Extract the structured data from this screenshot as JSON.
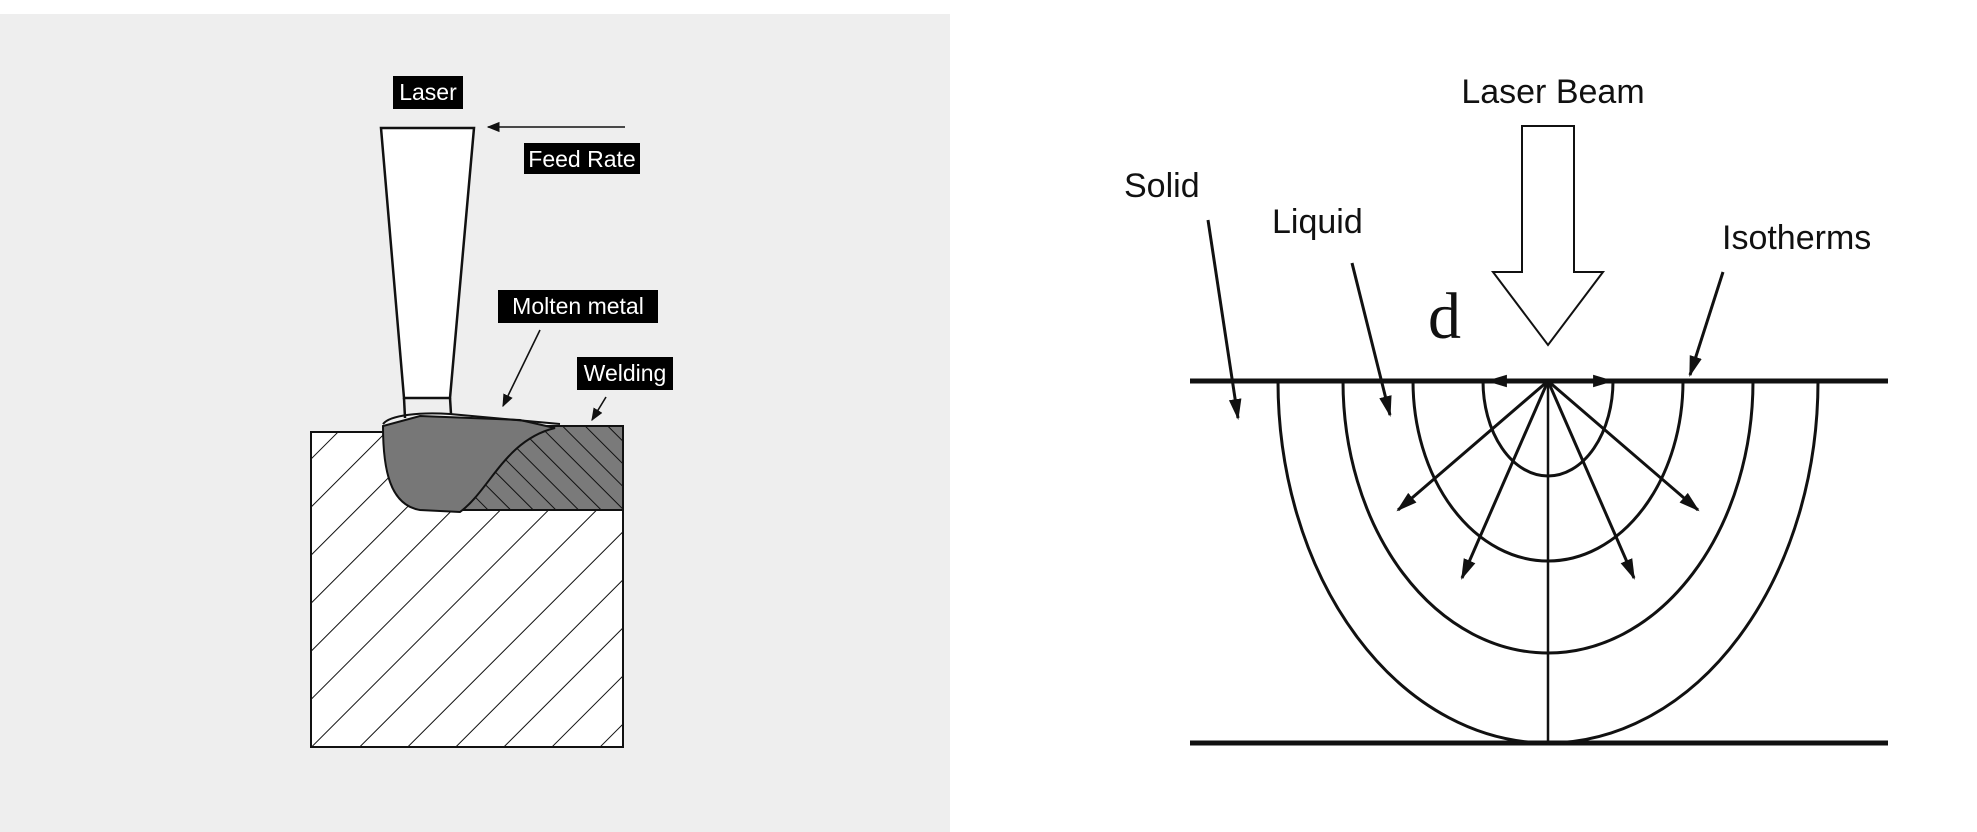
{
  "left_panel": {
    "background": "#eeeeee",
    "labels": {
      "laser": "Laser",
      "feed_rate": "Feed Rate",
      "molten_metal": "Molten metal",
      "welding": "Welding"
    },
    "colors": {
      "label_bg": "#000000",
      "molten": "#777777",
      "weld": "#7a7a7a"
    }
  },
  "right_panel": {
    "labels": {
      "laser_beam": "Laser Beam",
      "solid": "Solid",
      "liquid": "Liquid",
      "isotherms": "Isotherms",
      "depth": "d"
    }
  }
}
